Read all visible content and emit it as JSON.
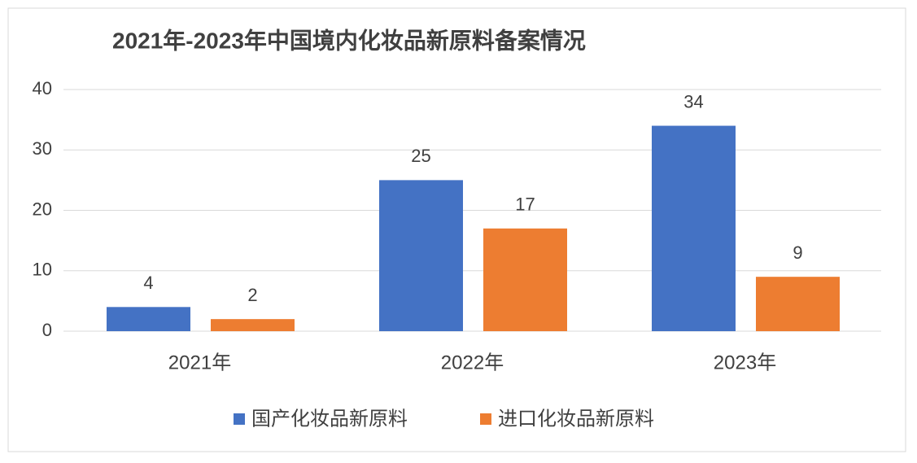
{
  "chart_data": {
    "type": "bar",
    "title": "2021年-2023年中国境内化妆品新原料备案情况",
    "categories": [
      "2021年",
      "2022年",
      "2023年"
    ],
    "series": [
      {
        "name": "国产化妆品新原料",
        "color": "#4472c4",
        "values": [
          4,
          25,
          34
        ]
      },
      {
        "name": "进口化妆品新原料",
        "color": "#ed7d31",
        "values": [
          2,
          17,
          9
        ]
      }
    ],
    "ylim": [
      0,
      40
    ],
    "yticks": [
      0,
      10,
      20,
      30,
      40
    ],
    "grid": true,
    "legend": "bottom"
  }
}
